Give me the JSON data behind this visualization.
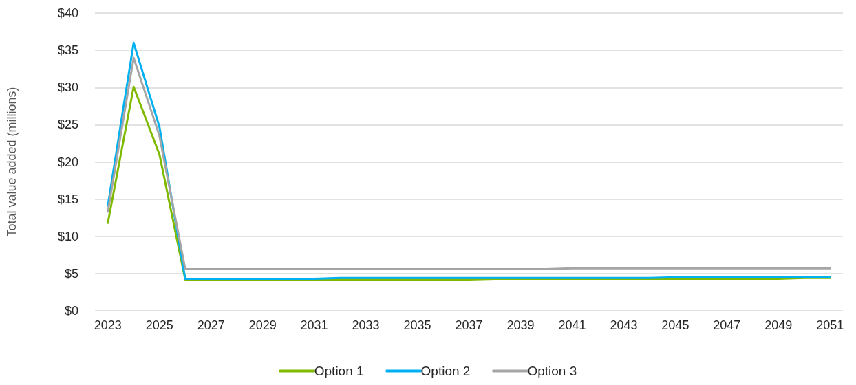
{
  "chart_data": {
    "type": "line",
    "ylabel": "Total value added (millions)",
    "categories": [
      "2023",
      null,
      "2025",
      null,
      "2027",
      null,
      "2029",
      null,
      "2031",
      null,
      "2033",
      null,
      "2035",
      null,
      "2037",
      null,
      "2039",
      null,
      "2041",
      null,
      "2043",
      null,
      "2045",
      null,
      "2047",
      null,
      "2049",
      null,
      "2051"
    ],
    "series": [
      {
        "name": "Option 1",
        "color": "#7fba00",
        "values": [
          11.8,
          30.1,
          21.0,
          4.2,
          4.2,
          4.2,
          4.2,
          4.2,
          4.2,
          4.2,
          4.2,
          4.2,
          4.2,
          4.2,
          4.2,
          4.3,
          4.3,
          4.3,
          4.3,
          4.3,
          4.3,
          4.3,
          4.3,
          4.3,
          4.3,
          4.3,
          4.3,
          4.4,
          4.4
        ]
      },
      {
        "name": "Option 2",
        "color": "#00b0f0",
        "values": [
          14.1,
          36.0,
          24.7,
          4.3,
          4.3,
          4.3,
          4.3,
          4.3,
          4.3,
          4.4,
          4.4,
          4.4,
          4.4,
          4.4,
          4.4,
          4.4,
          4.4,
          4.4,
          4.4,
          4.4,
          4.4,
          4.4,
          4.5,
          4.5,
          4.5,
          4.5,
          4.5,
          4.5,
          4.5
        ]
      },
      {
        "name": "Option 3",
        "color": "#a5a5a5",
        "values": [
          13.3,
          34.0,
          23.5,
          5.6,
          5.6,
          5.6,
          5.6,
          5.6,
          5.6,
          5.6,
          5.6,
          5.6,
          5.6,
          5.6,
          5.6,
          5.6,
          5.6,
          5.6,
          5.7,
          5.7,
          5.7,
          5.7,
          5.7,
          5.7,
          5.7,
          5.7,
          5.7,
          5.7,
          5.7
        ]
      }
    ],
    "ylim": [
      0,
      40
    ],
    "yticks": [
      {
        "value": 0,
        "label": "$0"
      },
      {
        "value": 5,
        "label": "$5"
      },
      {
        "value": 10,
        "label": "$10"
      },
      {
        "value": 15,
        "label": "$15"
      },
      {
        "value": 20,
        "label": "$20"
      },
      {
        "value": 25,
        "label": "$25"
      },
      {
        "value": 30,
        "label": "$30"
      },
      {
        "value": 35,
        "label": "$35"
      },
      {
        "value": 40,
        "label": "$40"
      }
    ],
    "grid": "y",
    "legend": "bottom",
    "marker": "none",
    "line_style": "solid"
  }
}
